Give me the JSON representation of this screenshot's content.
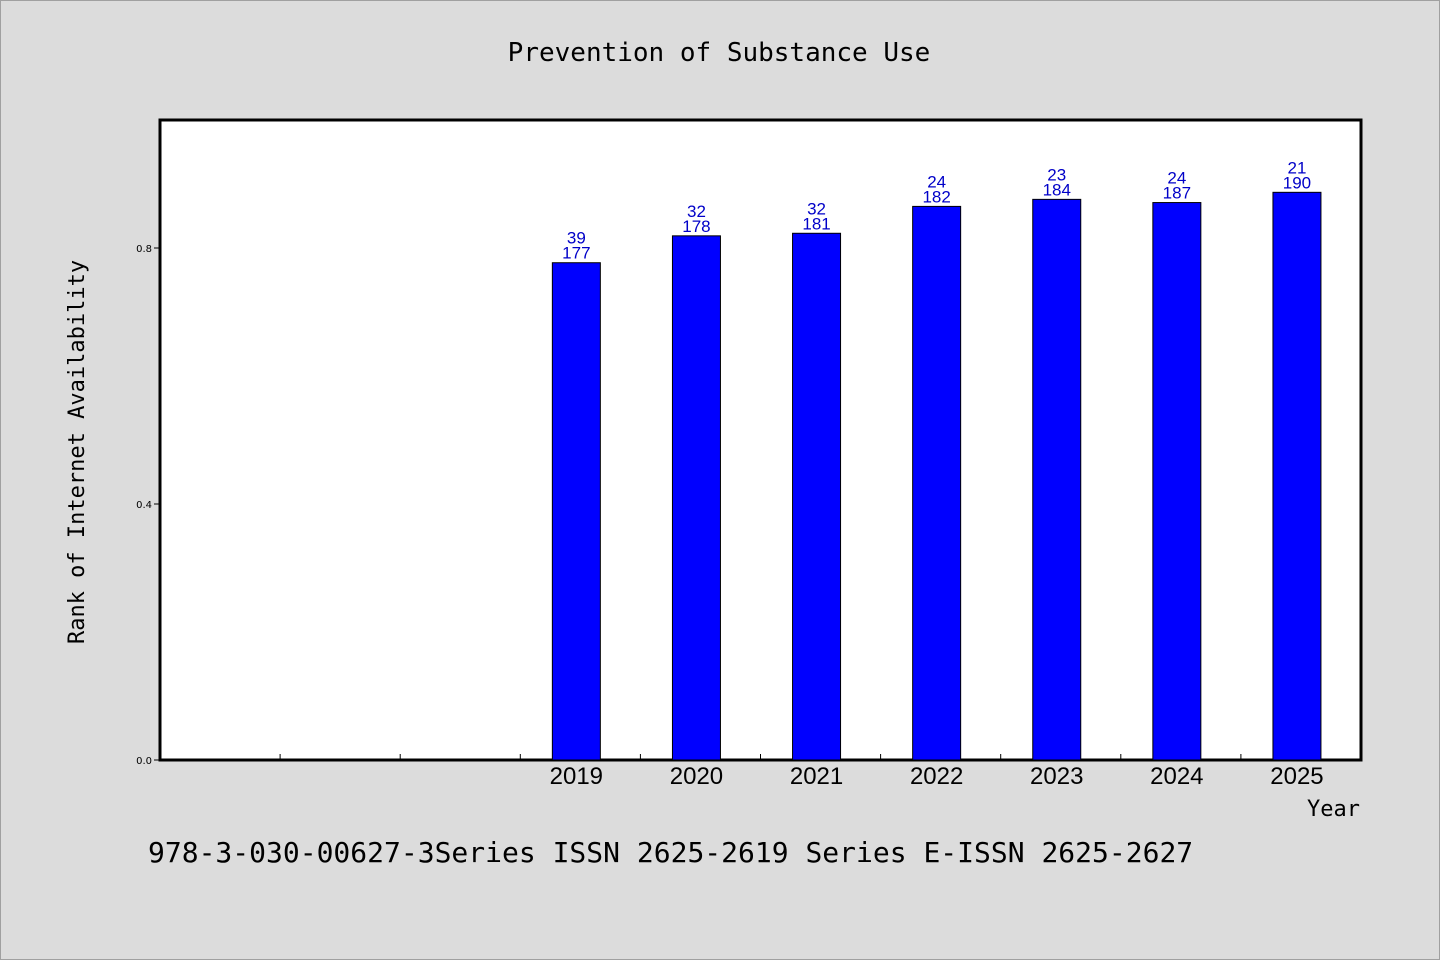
{
  "chart_data": {
    "type": "bar",
    "title": "Prevention of Substance Use",
    "xlabel": "Year",
    "ylabel": "Rank of Internet Availability",
    "ylim": [
      0.0,
      1.0
    ],
    "yticks": [
      "0.0",
      "0.4",
      "0.8"
    ],
    "categories": [
      "",
      "",
      "",
      "2019",
      "2020",
      "2021",
      "2022",
      "2023",
      "2024",
      "2025"
    ],
    "values": [
      null,
      null,
      null,
      0.777,
      0.819,
      0.823,
      0.865,
      0.876,
      0.871,
      0.887
    ],
    "labels_top": [
      "",
      "",
      "",
      "39",
      "32",
      "32",
      "24",
      "23",
      "24",
      "21"
    ],
    "labels_bottom": [
      "",
      "",
      "",
      "177",
      "178",
      "181",
      "182",
      "184",
      "187",
      "190"
    ],
    "bar_color": "#0000ff",
    "label_color": "#0000c8",
    "grid": false
  },
  "footer": {
    "text": "978-3-030-00627-3Series ISSN 2625-2619 Series E-ISSN 2625-2627"
  }
}
